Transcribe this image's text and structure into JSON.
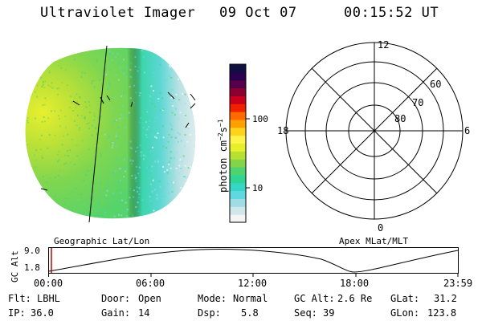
{
  "header": {
    "title": "Ultraviolet Imager",
    "date": "09 Oct 07",
    "time": "00:15:52 UT"
  },
  "colorbar": {
    "label": "photon cm⁻²s⁻¹",
    "label_base": "photon cm",
    "label_exp1": "−2",
    "label_mid": "s",
    "label_exp2": "−1",
    "ticks": [
      "100",
      "10"
    ],
    "colors": [
      "#f4f4f4",
      "#cfe6ea",
      "#9fdce6",
      "#5fd8e0",
      "#36d6c4",
      "#2fd495",
      "#4ed36e",
      "#84d44a",
      "#b8e030",
      "#e6ef2a",
      "#fff34a",
      "#ffd21c",
      "#ff9f00",
      "#ff6a00",
      "#f02000",
      "#c8001a",
      "#8a0030",
      "#56004c",
      "#2a0050",
      "#101040"
    ]
  },
  "polar": {
    "mlt_labels": {
      "top": "12",
      "left": "18",
      "right": "6",
      "bottom": "0"
    },
    "lat_labels": [
      "60",
      "70",
      "80"
    ]
  },
  "timeline": {
    "left_label": "Geographic Lat/Lon",
    "right_label": "Apex MLat/MLT",
    "y_label": "GC Alt",
    "y_ticks": [
      "9.0",
      "1.8"
    ],
    "x_ticks": [
      "00:00",
      "06:00",
      "12:00",
      "18:00",
      "23:59"
    ],
    "marker_color": "#cc0000"
  },
  "status": {
    "filter_label": "Flt:",
    "filter": "LBHL",
    "ip_label": "IP:",
    "ip": "36.0",
    "door_label": "Door:",
    "door": "Open",
    "gain_label": "Gain:",
    "gain": "14",
    "mode_label": "Mode:",
    "mode": "Normal",
    "dsp_label": "Dsp:",
    "dsp": "5.8",
    "gcalt_label": "GC Alt:",
    "gcalt": "2.6 Re",
    "seq_label": "Seq:",
    "seq": "39",
    "glat_label": "GLat:",
    "glat": "31.2",
    "glon_label": "GLon:",
    "glon": "123.8"
  }
}
